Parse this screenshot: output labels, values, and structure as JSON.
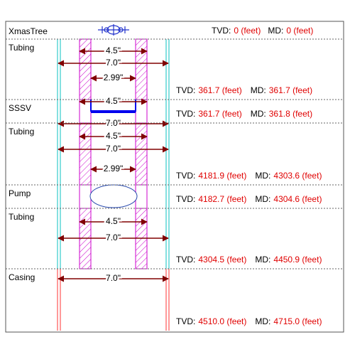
{
  "tvd_label": "TVD:",
  "md_label": "MD:",
  "sections": [
    {
      "label": "XmasTree",
      "tvd": "0 (feet)",
      "md": "0 (feet)"
    },
    {
      "label": "Tubing",
      "sizes": [
        "4.5\"",
        "7.0\"",
        "2.99\""
      ],
      "tvd": "361.7 (feet)",
      "md": "361.7 (feet)"
    },
    {
      "label": "SSSV",
      "sizes": [
        "4.5\"",
        "7.0\""
      ],
      "tvd": "361.7 (feet)",
      "md": "361.8 (feet)"
    },
    {
      "label": "Tubing",
      "sizes": [
        "4.5\"",
        "7.0\"",
        "2.99\""
      ],
      "tvd": "4181.9 (feet)",
      "md": "4303.6 (feet)"
    },
    {
      "label": "Pump",
      "tvd": "4182.7 (feet)",
      "md": "4304.6 (feet)"
    },
    {
      "label": "Tubing",
      "sizes": [
        "4.5\"",
        "7.0\""
      ],
      "tvd": "4304.5 (feet)",
      "md": "4450.9 (feet)"
    },
    {
      "label": "Casing",
      "sizes": [
        "7.0\""
      ],
      "tvd": "4510.0 (feet)",
      "md": "4715.0 (feet)"
    }
  ]
}
